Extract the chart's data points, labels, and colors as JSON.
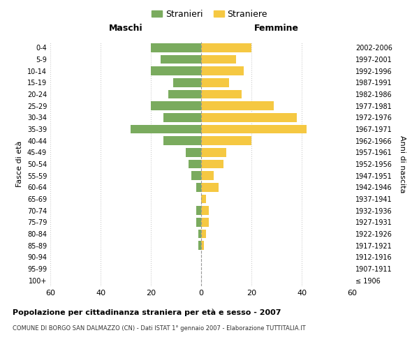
{
  "age_groups": [
    "100+",
    "95-99",
    "90-94",
    "85-89",
    "80-84",
    "75-79",
    "70-74",
    "65-69",
    "60-64",
    "55-59",
    "50-54",
    "45-49",
    "40-44",
    "35-39",
    "30-34",
    "25-29",
    "20-24",
    "15-19",
    "10-14",
    "5-9",
    "0-4"
  ],
  "birth_years": [
    "≤ 1906",
    "1907-1911",
    "1912-1916",
    "1917-1921",
    "1922-1926",
    "1927-1931",
    "1932-1936",
    "1937-1941",
    "1942-1946",
    "1947-1951",
    "1952-1956",
    "1957-1961",
    "1962-1966",
    "1967-1971",
    "1972-1976",
    "1977-1981",
    "1982-1986",
    "1987-1991",
    "1992-1996",
    "1997-2001",
    "2002-2006"
  ],
  "maschi": [
    0,
    0,
    0,
    1,
    1,
    2,
    2,
    0,
    2,
    4,
    5,
    6,
    15,
    28,
    15,
    20,
    13,
    11,
    20,
    16,
    20
  ],
  "femmine": [
    0,
    0,
    0,
    1,
    2,
    3,
    3,
    2,
    7,
    5,
    9,
    10,
    20,
    42,
    38,
    29,
    16,
    11,
    17,
    14,
    20
  ],
  "male_color": "#7aab5e",
  "female_color": "#f5c842",
  "title_main": "Popolazione per cittadinanza straniera per età e sesso - 2007",
  "title_sub": "COMUNE DI BORGO SAN DALMAZZO (CN) - Dati ISTAT 1° gennaio 2007 - Elaborazione TUTTITALIA.IT",
  "xlabel_left": "Maschi",
  "xlabel_right": "Femmine",
  "ylabel_left": "Fasce di età",
  "ylabel_right": "Anni di nascita",
  "legend_male": "Stranieri",
  "legend_female": "Straniere",
  "xlim": 60,
  "background_color": "#ffffff",
  "grid_color": "#cccccc"
}
